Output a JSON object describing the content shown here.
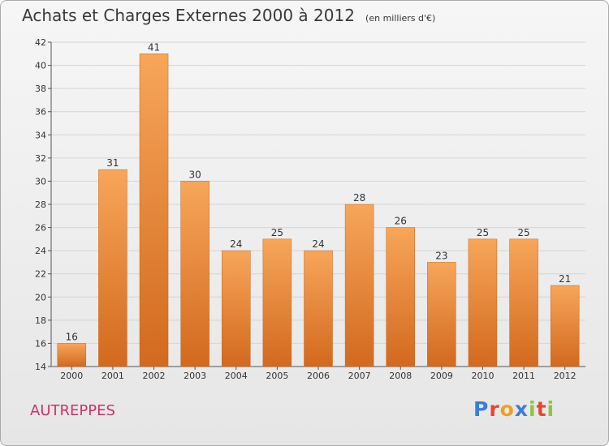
{
  "header": {
    "title": "Achats et Charges Externes 2000 à 2012",
    "unit": "(en milliers d'€)"
  },
  "footer": {
    "commune": "AUTREPPES",
    "logo_text": "Proxiti",
    "logo_colors": [
      "#3b7dd8",
      "#e8462c",
      "#f0a01e",
      "#3b7dd8",
      "#8cc63f",
      "#e8462c",
      "#8cc63f"
    ]
  },
  "colors": {
    "bar_light": "#f7a65a",
    "bar_dark": "#d2691e",
    "grid": "#d4d4d4",
    "axis": "#555555"
  },
  "chart_data": {
    "type": "bar",
    "categories": [
      "2000",
      "2001",
      "2002",
      "2003",
      "2004",
      "2005",
      "2006",
      "2007",
      "2008",
      "2009",
      "2010",
      "2011",
      "2012"
    ],
    "values": [
      16,
      31,
      41,
      30,
      24,
      25,
      24,
      28,
      26,
      23,
      25,
      25,
      21
    ],
    "title": "Achats et Charges Externes 2000 à 2012",
    "ylim": [
      14,
      42
    ],
    "yticks": [
      14,
      16,
      18,
      20,
      22,
      24,
      26,
      28,
      30,
      32,
      34,
      36,
      38,
      40,
      42
    ],
    "grid": true,
    "data_labels": true
  }
}
